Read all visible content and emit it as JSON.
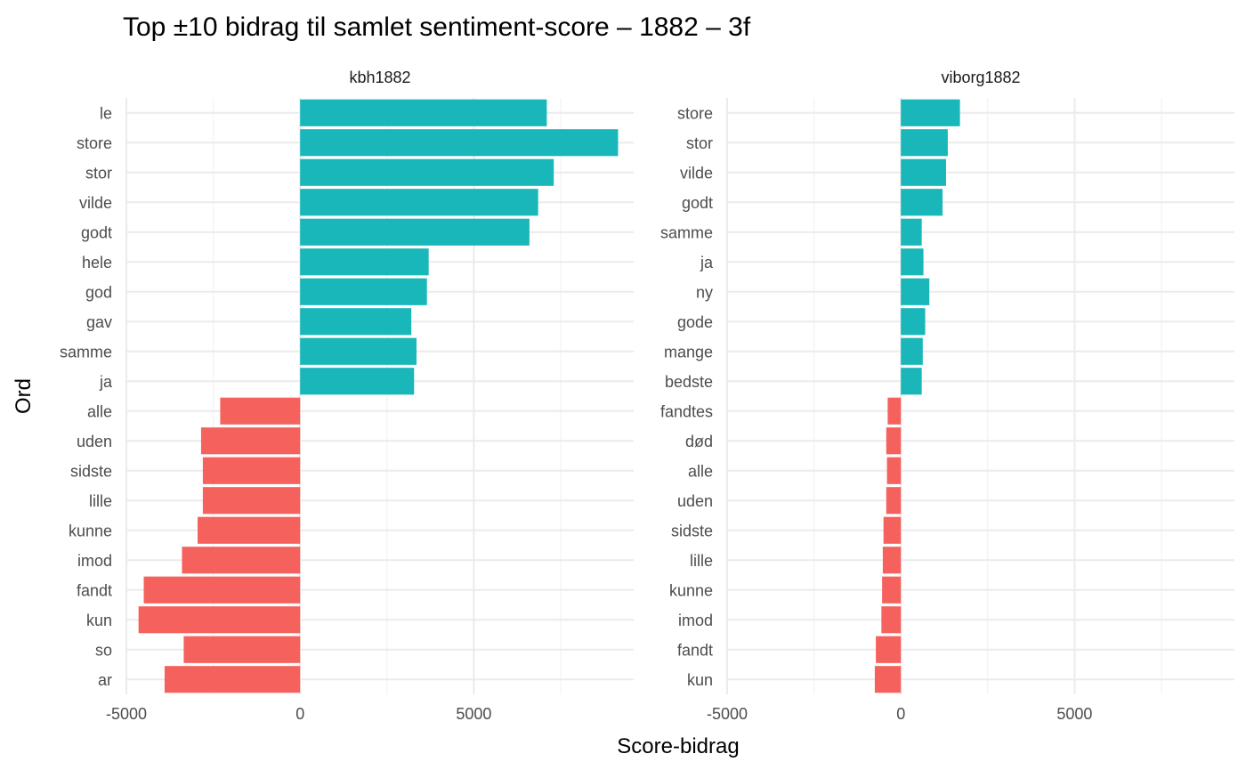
{
  "chart_data": {
    "type": "bar",
    "orientation": "horizontal",
    "title": "Top ±10 bidrag til samlet sentiment-score – 1882 – 3f",
    "xlabel": "Score-bidrag",
    "ylabel": "Ord",
    "xlim": [
      -5000,
      9600
    ],
    "x_ticks": [
      -5000,
      0,
      5000
    ],
    "x_tick_labels": [
      "-5000",
      "0",
      "5000"
    ],
    "grid": true,
    "colors": {
      "positive": "#19B6BA",
      "negative": "#F5615C"
    },
    "panels": [
      {
        "name": "kbh1882",
        "categories": [
          "le",
          "store",
          "stor",
          "vilde",
          "godt",
          "hele",
          "god",
          "gav",
          "samme",
          "ja",
          "alle",
          "uden",
          "sidste",
          "lille",
          "kunne",
          "imod",
          "fandt",
          "kun",
          "so",
          "ar"
        ],
        "values": [
          7100,
          9150,
          7300,
          6850,
          6600,
          3700,
          3650,
          3200,
          3350,
          3280,
          -2300,
          -2850,
          -2800,
          -2800,
          -2950,
          -3400,
          -4500,
          -4650,
          -3350,
          -3900
        ]
      },
      {
        "name": "viborg1882",
        "categories": [
          "store",
          "stor",
          "vilde",
          "godt",
          "samme",
          "ja",
          "ny",
          "gode",
          "mange",
          "bedste",
          "fandtes",
          "død",
          "alle",
          "uden",
          "sidste",
          "lille",
          "kunne",
          "imod",
          "fandt",
          "kun"
        ],
        "values": [
          1700,
          1350,
          1300,
          1200,
          600,
          650,
          820,
          700,
          630,
          600,
          -380,
          -420,
          -400,
          -420,
          -500,
          -520,
          -540,
          -560,
          -720,
          -750
        ]
      }
    ]
  }
}
